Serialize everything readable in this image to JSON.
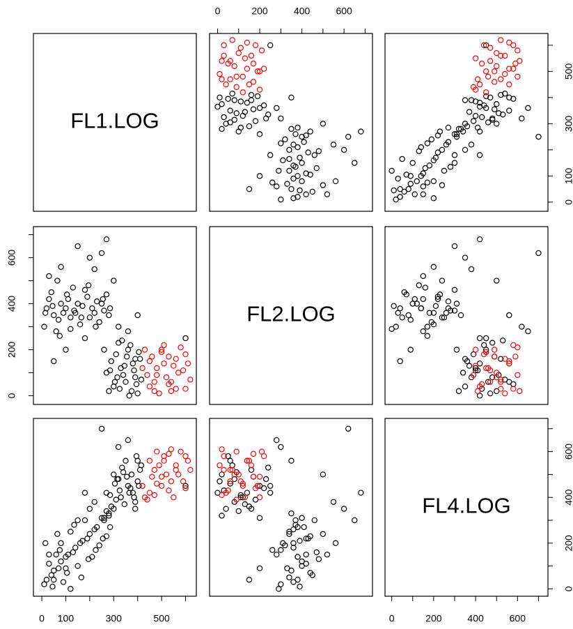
{
  "chart_data": {
    "type": "scatter-matrix",
    "variables": [
      {
        "name": "FL1.LOG",
        "lim": [
          -35,
          645
        ],
        "ticks": [
          0,
          100,
          {
            "value": 200,
            "label": null
          },
          300,
          {
            "value": 400,
            "label": null
          },
          500,
          {
            "value": 600,
            "label": null
          }
        ]
      },
      {
        "name": "FL2.LOG",
        "lim": [
          -38,
          735
        ],
        "ticks": [
          0,
          {
            "value": 100,
            "label": null
          },
          200,
          {
            "value": 300,
            "label": null
          },
          400,
          {
            "value": 500,
            "label": null
          },
          600,
          {
            "value": 700,
            "label": null
          }
        ]
      },
      {
        "name": "FL4.LOG",
        "lim": [
          -32,
          745
        ],
        "ticks": [
          0,
          {
            "value": 100,
            "label": null
          },
          200,
          {
            "value": 300,
            "label": null
          },
          400,
          {
            "value": 500,
            "label": null
          },
          600,
          {
            "value": 700,
            "label": null
          }
        ]
      }
    ],
    "series": [
      {
        "color": "#000000",
        "values": [
          [
            300,
            40,
            350
          ],
          [
            330,
            120,
            400
          ],
          [
            360,
            200,
            450
          ],
          [
            390,
            80,
            380
          ],
          [
            410,
            160,
            520
          ],
          [
            280,
            20,
            320
          ],
          [
            320,
            230,
            480
          ],
          [
            350,
            60,
            560
          ],
          [
            380,
            140,
            420
          ],
          [
            400,
            10,
            470
          ],
          [
            270,
            100,
            340
          ],
          [
            310,
            180,
            390
          ],
          [
            340,
            90,
            510
          ],
          [
            370,
            220,
            440
          ],
          [
            395,
            50,
            580
          ],
          [
            290,
            150,
            360
          ],
          [
            325,
            30,
            430
          ],
          [
            355,
            170,
            490
          ],
          [
            385,
            110,
            400
          ],
          [
            415,
            70,
            540
          ],
          [
            260,
            200,
            310
          ],
          [
            305,
            60,
            460
          ],
          [
            345,
            130,
            370
          ],
          [
            375,
            20,
            500
          ],
          [
            405,
            190,
            450
          ],
          [
            285,
            110,
            410
          ],
          [
            335,
            240,
            530
          ],
          [
            365,
            0,
            420
          ],
          [
            390,
            160,
            350
          ],
          [
            315,
            80,
            480
          ],
          [
            20,
            380,
            40
          ],
          [
            50,
            350,
            80
          ],
          [
            80,
            400,
            120
          ],
          [
            110,
            420,
            150
          ],
          [
            140,
            360,
            180
          ],
          [
            170,
            390,
            210
          ],
          [
            200,
            340,
            240
          ],
          [
            230,
            410,
            270
          ],
          [
            260,
            370,
            300
          ],
          [
            10,
            300,
            20
          ],
          [
            40,
            450,
            60
          ],
          [
            70,
            330,
            90
          ],
          [
            100,
            380,
            140
          ],
          [
            130,
            470,
            160
          ],
          [
            160,
            310,
            200
          ],
          [
            190,
            430,
            220
          ],
          [
            220,
            360,
            260
          ],
          [
            250,
            400,
            310
          ],
          [
            280,
            350,
            330
          ],
          [
            30,
            420,
            110
          ],
          [
            60,
            280,
            150
          ],
          [
            90,
            360,
            30
          ],
          [
            120,
            340,
            250
          ],
          [
            150,
            400,
            100
          ],
          [
            180,
            460,
            300
          ],
          [
            210,
            380,
            140
          ],
          [
            240,
            320,
            190
          ],
          [
            270,
            440,
            230
          ],
          [
            15,
            360,
            200
          ],
          [
            45,
            390,
            10
          ],
          [
            75,
            260,
            170
          ],
          [
            105,
            440,
            70
          ],
          [
            135,
            370,
            280
          ],
          [
            165,
            340,
            50
          ],
          [
            195,
            480,
            130
          ],
          [
            225,
            300,
            170
          ],
          [
            255,
            420,
            220
          ],
          [
            285,
            380,
            270
          ],
          [
            65,
            500,
            240
          ],
          [
            120,
            290,
            0
          ],
          [
            200,
            600,
            350
          ],
          [
            150,
            650,
            300
          ],
          [
            80,
            560,
            200
          ],
          [
            270,
            680,
            420
          ],
          [
            30,
            520,
            150
          ],
          [
            320,
            300,
            620
          ],
          [
            300,
            500,
            500
          ],
          [
            250,
            620,
            700
          ],
          [
            100,
            200,
            90
          ],
          [
            50,
            150,
            40
          ],
          [
            400,
            350,
            560
          ],
          [
            600,
            250,
            450
          ],
          [
            180,
            250,
            420
          ],
          [
            360,
            280,
            650
          ],
          [
            220,
            550,
            380
          ]
        ]
      },
      {
        "color": "#ff0000",
        "values": [
          [
            450,
            40,
            420
          ],
          [
            480,
            120,
            460
          ],
          [
            520,
            80,
            500
          ],
          [
            560,
            160,
            540
          ],
          [
            600,
            30,
            580
          ],
          [
            430,
            200,
            400
          ],
          [
            500,
            190,
            450
          ],
          [
            540,
            20,
            610
          ],
          [
            470,
            60,
            520
          ],
          [
            590,
            110,
            470
          ],
          [
            510,
            140,
            560
          ],
          [
            440,
            90,
            390
          ],
          [
            580,
            210,
            600
          ],
          [
            620,
            70,
            520
          ],
          [
            460,
            170,
            490
          ],
          [
            530,
            50,
            430
          ],
          [
            490,
            10,
            540
          ],
          [
            550,
            130,
            400
          ],
          [
            570,
            100,
            500
          ],
          [
            510,
            220,
            580
          ],
          [
            450,
            150,
            560
          ],
          [
            600,
            180,
            440
          ],
          [
            480,
            90,
            600
          ],
          [
            540,
            60,
            470
          ],
          [
            420,
            120,
            450
          ],
          [
            560,
            30,
            520
          ],
          [
            500,
            200,
            490
          ],
          [
            470,
            20,
            410
          ],
          [
            530,
            170,
            590
          ],
          [
            610,
            140,
            560
          ]
        ]
      }
    ]
  }
}
